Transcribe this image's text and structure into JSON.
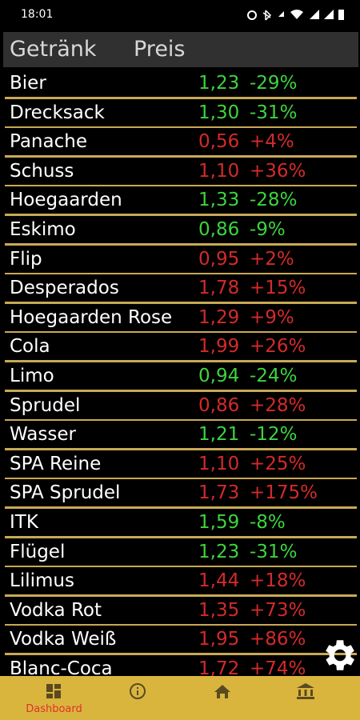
{
  "status_bar": {
    "time": "18:01"
  },
  "header": {
    "columns": [
      "Getränk",
      "Preis"
    ]
  },
  "table": {
    "rows": [
      {
        "name": "Bier",
        "price": "1,23",
        "change": "-29%",
        "color": "#3ed43e"
      },
      {
        "name": "Drecksack",
        "price": "1,30",
        "change": "-31%",
        "color": "#3ed43e"
      },
      {
        "name": "Panache",
        "price": "0,56",
        "change": "+4%",
        "color": "#d42a2a"
      },
      {
        "name": "Schuss",
        "price": "1,10",
        "change": "+36%",
        "color": "#d42a2a"
      },
      {
        "name": "Hoegaarden",
        "price": "1,33",
        "change": "-28%",
        "color": "#3ed43e"
      },
      {
        "name": "Eskimo",
        "price": "0,86",
        "change": "-9%",
        "color": "#3ed43e"
      },
      {
        "name": "Flip",
        "price": "0,95",
        "change": "+2%",
        "color": "#d42a2a"
      },
      {
        "name": "Desperados",
        "price": "1,78",
        "change": "+15%",
        "color": "#d42a2a"
      },
      {
        "name": "Hoegaarden Rose",
        "price": "1,29",
        "change": "+9%",
        "color": "#d42a2a"
      },
      {
        "name": "Cola",
        "price": "1,99",
        "change": "+26%",
        "color": "#d42a2a"
      },
      {
        "name": "Limo",
        "price": "0,94",
        "change": "-24%",
        "color": "#3ed43e"
      },
      {
        "name": "Sprudel",
        "price": "0,86",
        "change": "+28%",
        "color": "#d42a2a"
      },
      {
        "name": "Wasser",
        "price": "1,21",
        "change": "-12%",
        "color": "#3ed43e"
      },
      {
        "name": "SPA Reine",
        "price": "1,10",
        "change": "+25%",
        "color": "#d42a2a"
      },
      {
        "name": "SPA Sprudel",
        "price": "1,73",
        "change": "+175%",
        "color": "#d42a2a"
      },
      {
        "name": "ITK",
        "price": "1,59",
        "change": "-8%",
        "color": "#3ed43e"
      },
      {
        "name": "Flügel",
        "price": "1,23",
        "change": "-31%",
        "color": "#3ed43e"
      },
      {
        "name": "Lilimus",
        "price": "1,44",
        "change": "+18%",
        "color": "#d42a2a"
      },
      {
        "name": "Vodka Rot",
        "price": "1,35",
        "change": "+73%",
        "color": "#d42a2a"
      },
      {
        "name": "Vodka Weiß",
        "price": "1,95",
        "change": "+86%",
        "color": "#d42a2a"
      },
      {
        "name": "Blanc-Coca",
        "price": "1,72",
        "change": "+74%",
        "color": "#d42a2a"
      }
    ]
  },
  "nav": {
    "active_label": "Dashboard"
  }
}
